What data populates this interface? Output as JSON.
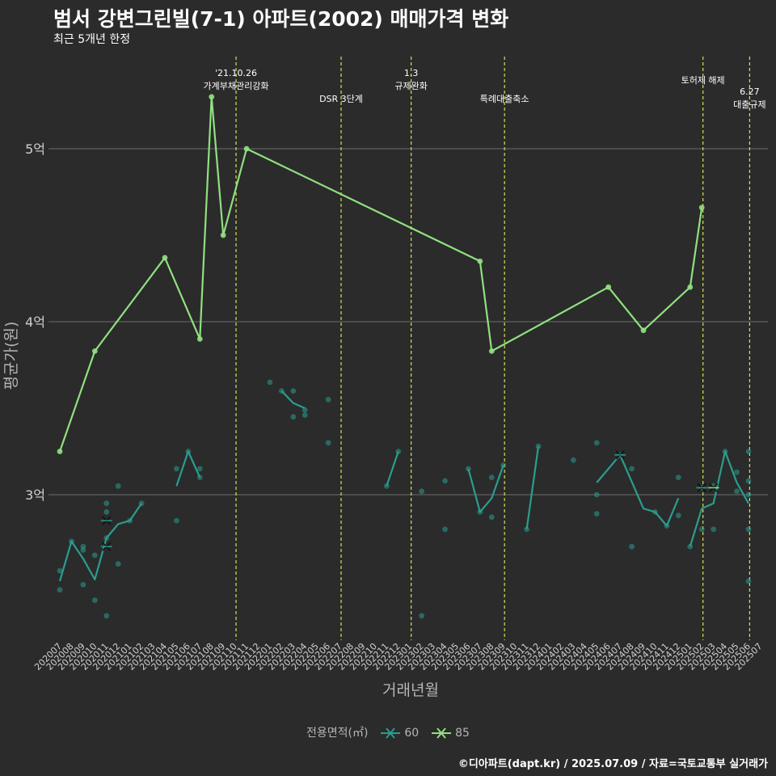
{
  "title": "범서 강변그린빌(7-1) 아파트(2002) 매매가격 변화",
  "subtitle": "최근 5개년 한정",
  "caption": "©디아파트(dapt.kr) / 2025.07.09 / 자료=국토교통부 실거래가",
  "colors": {
    "background": "#2b2b2b",
    "grid": "#6e6e6e",
    "series60": "#2a9d8f",
    "series85": "#90e080",
    "event": "#d4e157",
    "text": "#ffffff",
    "axis_text": "#b5b5b5"
  },
  "chart_data": {
    "type": "line",
    "title": "범서 강변그린빌(7-1) 아파트(2002) 매매가격 변화",
    "xlabel": "거래년월",
    "ylabel": "평균가(원)",
    "ylim": [
      2.1,
      5.55
    ],
    "yticks": [
      {
        "value": 3,
        "label": "3억"
      },
      {
        "value": 4,
        "label": "4억"
      },
      {
        "value": 5,
        "label": "5억"
      }
    ],
    "categories": [
      "202007",
      "202008",
      "202009",
      "202010",
      "202011",
      "202012",
      "202101",
      "202102",
      "202103",
      "202104",
      "202105",
      "202106",
      "202107",
      "202108",
      "202109",
      "202110",
      "202111",
      "202112",
      "202201",
      "202202",
      "202203",
      "202204",
      "202205",
      "202206",
      "202207",
      "202208",
      "202209",
      "202210",
      "202211",
      "202212",
      "202301",
      "202302",
      "202303",
      "202304",
      "202305",
      "202306",
      "202307",
      "202308",
      "202309",
      "202310",
      "202311",
      "202312",
      "202401",
      "202402",
      "202403",
      "202404",
      "202405",
      "202406",
      "202407",
      "202408",
      "202409",
      "202410",
      "202411",
      "202412",
      "202501",
      "202502",
      "202503",
      "202504",
      "202505",
      "202506",
      "202507"
    ],
    "legend_title": "전용면적(㎡)",
    "series": [
      {
        "name": "60",
        "line": [
          [
            0,
            2.5
          ],
          [
            1,
            2.73
          ],
          [
            2,
            2.63
          ],
          [
            3,
            2.51
          ],
          [
            4,
            2.75
          ],
          [
            5,
            2.83
          ],
          [
            6,
            2.85
          ],
          [
            7,
            2.95
          ],
          null,
          [
            10,
            3.05
          ],
          [
            11,
            3.25
          ],
          [
            12,
            3.1
          ],
          null,
          [
            19,
            3.6
          ],
          [
            20,
            3.53
          ],
          [
            21,
            3.5
          ],
          null,
          [
            28,
            3.05
          ],
          [
            29,
            3.25
          ],
          null,
          [
            35,
            3.15
          ],
          [
            36,
            2.9
          ],
          [
            37,
            2.98
          ],
          [
            38,
            3.17
          ],
          null,
          [
            40,
            2.8
          ],
          [
            41,
            3.28
          ],
          null,
          [
            46,
            3.07
          ],
          [
            48,
            3.23
          ],
          [
            50,
            2.92
          ],
          [
            51,
            2.9
          ],
          [
            52,
            2.82
          ],
          [
            53,
            2.98
          ],
          null,
          [
            54,
            2.7
          ],
          [
            55,
            2.92
          ],
          [
            56,
            2.95
          ],
          [
            57,
            3.25
          ],
          [
            58,
            3.07
          ],
          [
            59,
            2.95
          ]
        ],
        "points": [
          [
            0,
            2.56
          ],
          [
            0,
            2.45
          ],
          [
            1,
            2.73
          ],
          [
            2,
            2.7
          ],
          [
            2,
            2.68
          ],
          [
            2,
            2.48
          ],
          [
            3,
            2.65
          ],
          [
            3,
            2.39
          ],
          [
            4,
            2.95
          ],
          [
            4,
            2.9
          ],
          [
            4,
            2.75
          ],
          [
            4,
            2.3
          ],
          [
            5,
            3.05
          ],
          [
            5,
            2.6
          ],
          [
            6,
            2.85
          ],
          [
            7,
            2.95
          ],
          [
            10,
            3.15
          ],
          [
            10,
            2.85
          ],
          [
            11,
            3.25
          ],
          [
            12,
            3.15
          ],
          [
            12,
            3.1
          ],
          [
            18,
            3.65
          ],
          [
            19,
            3.6
          ],
          [
            20,
            3.6
          ],
          [
            20,
            3.45
          ],
          [
            21,
            3.49
          ],
          [
            21,
            3.46
          ],
          [
            23,
            3.3
          ],
          [
            23,
            3.55
          ],
          [
            28,
            3.05
          ],
          [
            29,
            3.25
          ],
          [
            31,
            3.02
          ],
          [
            31,
            2.3
          ],
          [
            33,
            3.08
          ],
          [
            33,
            2.8
          ],
          [
            35,
            3.15
          ],
          [
            36,
            2.9
          ],
          [
            37,
            3.1
          ],
          [
            37,
            2.87
          ],
          [
            38,
            3.17
          ],
          [
            40,
            2.8
          ],
          [
            41,
            3.28
          ],
          [
            44,
            3.2
          ],
          [
            46,
            3.3
          ],
          [
            46,
            3.0
          ],
          [
            46,
            2.89
          ],
          [
            48,
            3.23
          ],
          [
            49,
            3.15
          ],
          [
            49,
            2.7
          ],
          [
            51,
            2.9
          ],
          [
            52,
            2.82
          ],
          [
            53,
            3.1
          ],
          [
            53,
            2.88
          ],
          [
            54,
            2.7
          ],
          [
            55,
            3.04
          ],
          [
            55,
            2.8
          ],
          [
            56,
            3.05
          ],
          [
            56,
            2.8
          ],
          [
            57,
            3.25
          ],
          [
            58,
            3.13
          ],
          [
            58,
            3.02
          ],
          [
            59,
            3.25
          ],
          [
            59,
            3.08
          ],
          [
            59,
            3.0
          ],
          [
            59,
            2.8
          ],
          [
            59,
            2.5
          ]
        ],
        "crosses": [
          [
            4,
            2.85
          ],
          [
            4,
            2.7
          ],
          [
            48,
            3.23
          ],
          [
            55,
            3.04
          ]
        ]
      },
      {
        "name": "85",
        "line": [
          [
            0,
            3.25
          ],
          [
            3,
            3.83
          ],
          [
            9,
            4.37
          ],
          [
            12,
            3.9
          ],
          [
            13,
            5.3
          ],
          [
            14,
            4.5
          ],
          [
            16,
            5.0
          ],
          [
            36,
            4.35
          ],
          [
            37,
            3.83
          ],
          [
            47,
            4.2
          ],
          [
            50,
            3.95
          ],
          [
            54,
            4.2
          ],
          [
            55,
            4.66
          ]
        ],
        "points": [
          [
            0,
            3.25
          ],
          [
            3,
            3.83
          ],
          [
            9,
            4.37
          ],
          [
            12,
            3.9
          ],
          [
            13,
            5.3
          ],
          [
            14,
            4.5
          ],
          [
            16,
            5.0
          ],
          [
            36,
            4.35
          ],
          [
            37,
            3.83
          ],
          [
            47,
            4.2
          ],
          [
            50,
            3.95
          ],
          [
            54,
            4.2
          ],
          [
            55,
            4.66
          ]
        ],
        "crosses": [
          [
            56,
            3.04
          ]
        ]
      }
    ],
    "events": [
      {
        "index": 15.1,
        "label_line1": "'21.10.26",
        "label_line2": "가계부채관리강화"
      },
      {
        "index": 24.1,
        "label_line1": "",
        "label_line2": "DSR 3단계"
      },
      {
        "index": 30.1,
        "label_line1": "1.3",
        "label_line2": "규제완화"
      },
      {
        "index": 38.1,
        "label_line1": "",
        "label_line2": "특례대출축소"
      },
      {
        "index": 55.1,
        "label_line1": "토허제 해제",
        "label_line2": ""
      },
      {
        "index": 59.1,
        "label_line1": "6.27",
        "label_line2": "대출규제"
      }
    ]
  }
}
